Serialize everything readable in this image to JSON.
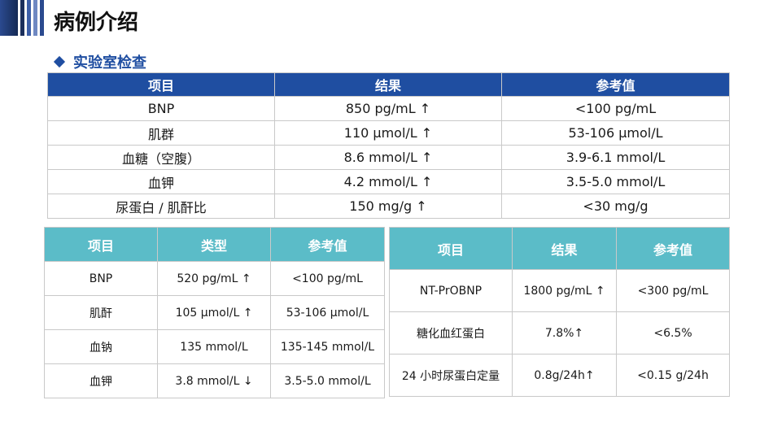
{
  "page": {
    "title": "病例介绍"
  },
  "section": {
    "title": "实验室检查"
  },
  "theme": {
    "primary": "#1f4ea1",
    "teal": "#5bbcc8",
    "bar_dark": "#1b2f5c",
    "bar_light": "#6f88c2"
  },
  "table_top": {
    "headers": [
      "项目",
      "结果",
      "参考值"
    ],
    "rows": [
      [
        "BNP",
        "850 pg/mL ↑",
        "<100 pg/mL"
      ],
      [
        "肌群",
        "110 μmol/L ↑",
        "53-106 μmol/L"
      ],
      [
        "血糖（空腹）",
        "8.6 mmol/L ↑",
        "3.9-6.1 mmol/L"
      ],
      [
        "血钾",
        "4.2 mmol/L ↑",
        "3.5-5.0 mmol/L"
      ],
      [
        "尿蛋白 / 肌酐比",
        "150 mg/g ↑",
        "<30 mg/g"
      ]
    ]
  },
  "table_left": {
    "headers": [
      "项目",
      "类型",
      "参考值"
    ],
    "rows": [
      [
        "BNP",
        "520 pg/mL ↑",
        "<100 pg/mL"
      ],
      [
        "肌酐",
        "105 μmol/L ↑",
        "53-106 μmol/L"
      ],
      [
        "血钠",
        "135 mmol/L",
        "135-145 mmol/L"
      ],
      [
        "血钾",
        "3.8 mmol/L ↓",
        "3.5-5.0 mmol/L"
      ]
    ]
  },
  "table_right": {
    "headers": [
      "项目",
      "结果",
      "参考值"
    ],
    "rows": [
      [
        "NT-PrOBNP",
        "1800 pg/mL ↑",
        "<300 pg/mL"
      ],
      [
        "糖化血红蛋白",
        "7.8%↑",
        "<6.5%"
      ],
      [
        "24 小时尿蛋白定量",
        "0.8g/24h↑",
        "<0.15 g/24h"
      ]
    ]
  }
}
